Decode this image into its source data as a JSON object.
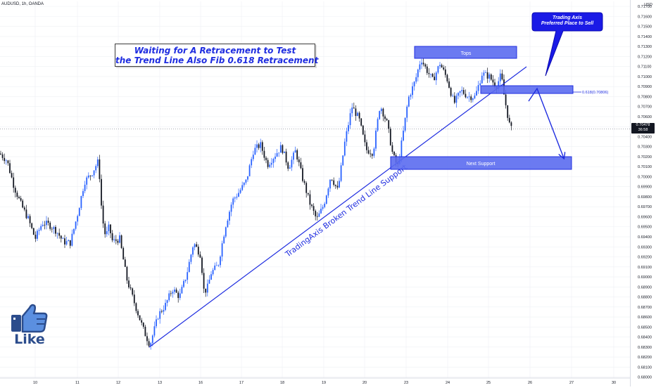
{
  "header": {
    "symbol_label": "AUDUSD, 1h, OANDA"
  },
  "price_axis": {
    "currency_label": "USD",
    "last_price": "0.70478",
    "countdown": "36:58"
  },
  "annotations": {
    "title_line1": "Waiting for A Retracement to Test",
    "title_line2": "the Trend Line Also Fib 0.618 Retracement",
    "bubble_line1": "Trading Axis",
    "bubble_line2": "Preferred Place to Sell",
    "tops_label": "Tops",
    "fib_label": "0.618(0.70806)",
    "support_label": "Next Support",
    "trendline_label": "TradingAxis Broken Trend Line Support",
    "like_label": "Like"
  },
  "colors": {
    "bull": "#2962ff",
    "bear": "#131722",
    "annotation": "#1f2de0",
    "zone_fill": "#5b6cf0",
    "grid": "#eef0f4"
  },
  "icons": {
    "like": "thumbs-up-icon"
  },
  "chart_data": {
    "type": "candlestick",
    "title": "AUDUSD, 1h, OANDA",
    "x_ticks": [
      "10",
      "11",
      "12",
      "13",
      "16",
      "17",
      "18",
      "19",
      "20",
      "23",
      "24",
      "25",
      "26",
      "27",
      "30"
    ],
    "y_ticks": [
      "0.71700",
      "0.71600",
      "0.71500",
      "0.71400",
      "0.71300",
      "0.71200",
      "0.71100",
      "0.71000",
      "0.70900",
      "0.70800",
      "0.70700",
      "0.70600",
      "0.70500",
      "0.70400",
      "0.70300",
      "0.70200",
      "0.70100",
      "0.70000",
      "0.69900",
      "0.69800",
      "0.69700",
      "0.69600",
      "0.69500",
      "0.69400",
      "0.69300",
      "0.69200",
      "0.69100",
      "0.69000",
      "0.68900",
      "0.68800",
      "0.68700",
      "0.68600",
      "0.68500",
      "0.68400",
      "0.68300",
      "0.68200",
      "0.68100",
      "0.68000"
    ],
    "ylim": [
      0.6799,
      0.7175
    ],
    "last_price": 0.70478,
    "fib_level": 0.70806,
    "zones": [
      {
        "label": "Tops",
        "from": 0.7122,
        "to": 0.7134
      },
      {
        "label": "0.618(0.70806)",
        "from": 0.708,
        "to": 0.7088
      },
      {
        "label": "Next Support",
        "from": 0.7005,
        "to": 0.7018
      }
    ],
    "close_path": [
      [
        0,
        0.7023
      ],
      [
        10,
        0.7016
      ],
      [
        20,
        0.699
      ],
      [
        30,
        0.6972
      ],
      [
        40,
        0.6958
      ],
      [
        50,
        0.6938
      ],
      [
        60,
        0.6954
      ],
      [
        70,
        0.6952
      ],
      [
        80,
        0.6946
      ],
      [
        90,
        0.6935
      ],
      [
        100,
        0.6934
      ],
      [
        110,
        0.6962
      ],
      [
        120,
        0.6995
      ],
      [
        130,
        0.7003
      ],
      [
        140,
        0.7016
      ],
      [
        145,
        0.696
      ],
      [
        150,
        0.694
      ],
      [
        155,
        0.695
      ],
      [
        160,
        0.6935
      ],
      [
        170,
        0.6938
      ],
      [
        180,
        0.6898
      ],
      [
        190,
        0.6876
      ],
      [
        200,
        0.6855
      ],
      [
        205,
        0.6845
      ],
      [
        213,
        0.6832
      ],
      [
        225,
        0.6862
      ],
      [
        235,
        0.6872
      ],
      [
        245,
        0.6888
      ],
      [
        255,
        0.688
      ],
      [
        265,
        0.6902
      ],
      [
        275,
        0.6934
      ],
      [
        285,
        0.6922
      ],
      [
        290,
        0.6884
      ],
      [
        295,
        0.689
      ],
      [
        300,
        0.6904
      ],
      [
        310,
        0.6912
      ],
      [
        320,
        0.695
      ],
      [
        330,
        0.6976
      ],
      [
        340,
        0.6985
      ],
      [
        350,
        0.6996
      ],
      [
        360,
        0.7026
      ],
      [
        370,
        0.7032
      ],
      [
        380,
        0.7012
      ],
      [
        390,
        0.7021
      ],
      [
        400,
        0.703
      ],
      [
        410,
        0.7009
      ],
      [
        420,
        0.7026
      ],
      [
        430,
        0.6998
      ],
      [
        440,
        0.6974
      ],
      [
        450,
        0.6957
      ],
      [
        460,
        0.6972
      ],
      [
        470,
        0.7001
      ],
      [
        480,
        0.6986
      ],
      [
        490,
        0.7035
      ],
      [
        500,
        0.707
      ],
      [
        510,
        0.7058
      ],
      [
        520,
        0.7027
      ],
      [
        530,
        0.7024
      ],
      [
        540,
        0.7072
      ],
      [
        550,
        0.7053
      ],
      [
        558,
        0.7022
      ],
      [
        565,
        0.701
      ],
      [
        572,
        0.704
      ],
      [
        580,
        0.7078
      ],
      [
        590,
        0.7096
      ],
      [
        598,
        0.7118
      ],
      [
        605,
        0.7108
      ],
      [
        615,
        0.7096
      ],
      [
        625,
        0.7113
      ],
      [
        635,
        0.7098
      ],
      [
        645,
        0.7073
      ],
      [
        655,
        0.7086
      ],
      [
        665,
        0.708
      ],
      [
        675,
        0.708
      ],
      [
        685,
        0.7103
      ],
      [
        695,
        0.71
      ],
      [
        705,
        0.709
      ],
      [
        712,
        0.7102
      ],
      [
        716,
        0.7082
      ],
      [
        720,
        0.7066
      ],
      [
        725,
        0.7048
      ],
      [
        728,
        0.7047
      ]
    ]
  }
}
